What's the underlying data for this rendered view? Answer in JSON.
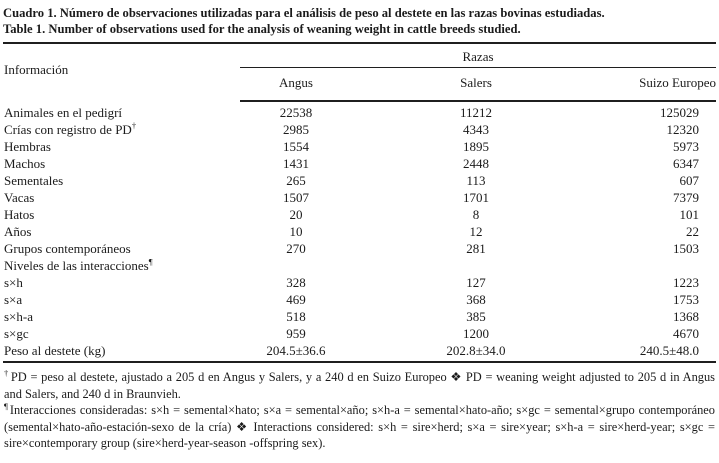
{
  "page": {
    "title_es": "Cuadro 1. Número de observaciones utilizadas para el análisis de peso al destete en las razas bovinas estudiadas.",
    "title_en": "Table 1. Number of observations used for the analysis of weaning weight in cattle breeds studied."
  },
  "table": {
    "info_header": "Información",
    "group_header": "Razas",
    "columns": [
      "Angus",
      "Salers",
      "Suizo Europeo"
    ],
    "rows": [
      {
        "label": "Animales en el pedigrí",
        "sup": "",
        "angus": "22538",
        "salers": "11212",
        "suizo": "125029"
      },
      {
        "label": "Crías con registro de PD",
        "sup": "†",
        "angus": "2985",
        "salers": "4343",
        "suizo": "12320"
      },
      {
        "label": "Hembras",
        "sup": "",
        "angus": "1554",
        "salers": "1895",
        "suizo": "5973"
      },
      {
        "label": "Machos",
        "sup": "",
        "angus": "1431",
        "salers": "2448",
        "suizo": "6347"
      },
      {
        "label": "Sementales",
        "sup": "",
        "angus": "265",
        "salers": "113",
        "suizo": "607"
      },
      {
        "label": "Vacas",
        "sup": "",
        "angus": "1507",
        "salers": "1701",
        "suizo": "7379"
      },
      {
        "label": "Hatos",
        "sup": "",
        "angus": "20",
        "salers": "8",
        "suizo": "101"
      },
      {
        "label": "Años",
        "sup": "",
        "angus": "10",
        "salers": "12",
        "suizo": "22"
      },
      {
        "label": "Grupos contemporáneos",
        "sup": "",
        "angus": "270",
        "salers": "281",
        "suizo": "1503"
      },
      {
        "label": "Niveles de las interacciones",
        "sup": "¶",
        "angus": "",
        "salers": "",
        "suizo": ""
      },
      {
        "label": "s×h",
        "sup": "",
        "angus": "328",
        "salers": "127",
        "suizo": "1223"
      },
      {
        "label": "s×a",
        "sup": "",
        "angus": "469",
        "salers": "368",
        "suizo": "1753"
      },
      {
        "label": "s×h-a",
        "sup": "",
        "angus": "518",
        "salers": "385",
        "suizo": "1368"
      },
      {
        "label": "s×gc",
        "sup": "",
        "angus": "959",
        "salers": "1200",
        "suizo": "4670"
      },
      {
        "label": "Peso al destete (kg)",
        "sup": "",
        "angus": "204.5±36.6",
        "salers": "202.8±34.0",
        "suizo": "240.5±48.0"
      }
    ]
  },
  "footnotes": [
    {
      "sup": "†",
      "text": "PD = peso al destete, ajustado a 205 d en Angus y Salers, y a 240 d en Suizo Europeo ❖ PD = weaning weight adjusted to 205 d in Angus and Salers, and 240 d in Braunvieh."
    },
    {
      "sup": "¶",
      "text": "Interacciones consideradas: s×h = semental×hato; s×a = semental×año; s×h-a = semental×hato-año; s×gc = semental×grupo contemporáneo (semental×hato-año-estación-sexo de la cría) ❖ Interactions considered: s×h = sire×herd; s×a = sire×year; s×h-a = sire×herd-year; s×gc = sire×contemporary group (sire×herd-year-season -offspring sex)."
    }
  ],
  "colors": {
    "background": "#ffffff",
    "text": "#1b1b1b",
    "rule": "#1f1f1f"
  }
}
